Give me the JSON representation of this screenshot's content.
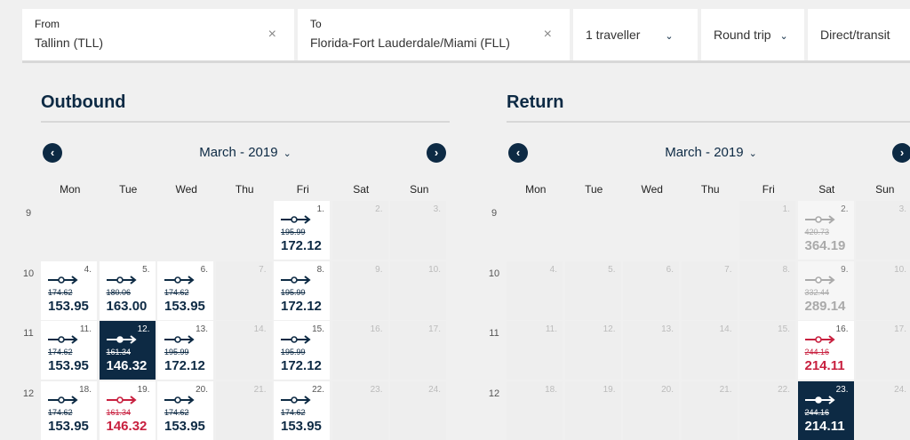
{
  "search": {
    "from_label": "From",
    "from_value": "Tallinn (TLL)",
    "to_label": "To",
    "to_value": "Florida-Fort Lauderdale/Miami (FLL)",
    "travellers": "1 traveller",
    "trip_type": "Round trip",
    "stops": "Direct/transit",
    "clear_icon": "×",
    "chevron": "⌄"
  },
  "colors": {
    "navy": "#0d2a44",
    "red": "#c8203f"
  },
  "dows": [
    "Mon",
    "Tue",
    "Wed",
    "Thu",
    "Fri",
    "Sat",
    "Sun"
  ],
  "outbound": {
    "title": "Outbound",
    "month": "March - 2019",
    "weeks": [
      {
        "num": "9",
        "cells": [
          null,
          null,
          null,
          null,
          {
            "day": "1.",
            "state": "avail",
            "old": "195.99",
            "price": "172.12"
          },
          {
            "day": "2.",
            "state": "na"
          },
          {
            "day": "3.",
            "state": "na"
          }
        ]
      },
      {
        "num": "10",
        "cells": [
          {
            "day": "4.",
            "state": "avail",
            "old": "174.62",
            "price": "153.95"
          },
          {
            "day": "5.",
            "state": "avail",
            "old": "180.06",
            "price": "163.00"
          },
          {
            "day": "6.",
            "state": "avail",
            "old": "174.62",
            "price": "153.95"
          },
          {
            "day": "7.",
            "state": "na"
          },
          {
            "day": "8.",
            "state": "avail",
            "old": "195.99",
            "price": "172.12"
          },
          {
            "day": "9.",
            "state": "na"
          },
          {
            "day": "10.",
            "state": "na"
          }
        ]
      },
      {
        "num": "11",
        "cells": [
          {
            "day": "11.",
            "state": "avail",
            "old": "174.62",
            "price": "153.95"
          },
          {
            "day": "12.",
            "state": "sel",
            "old": "161.34",
            "price": "146.32"
          },
          {
            "day": "13.",
            "state": "avail",
            "old": "195.99",
            "price": "172.12"
          },
          {
            "day": "14.",
            "state": "na"
          },
          {
            "day": "15.",
            "state": "avail",
            "old": "195.99",
            "price": "172.12"
          },
          {
            "day": "16.",
            "state": "na"
          },
          {
            "day": "17.",
            "state": "na"
          }
        ]
      },
      {
        "num": "12",
        "cells": [
          {
            "day": "18.",
            "state": "avail",
            "old": "174.62",
            "price": "153.95"
          },
          {
            "day": "19.",
            "state": "red",
            "old": "161.34",
            "price": "146.32"
          },
          {
            "day": "20.",
            "state": "avail",
            "old": "174.62",
            "price": "153.95"
          },
          {
            "day": "21.",
            "state": "na"
          },
          {
            "day": "22.",
            "state": "avail",
            "old": "174.62",
            "price": "153.95"
          },
          {
            "day": "23.",
            "state": "na"
          },
          {
            "day": "24.",
            "state": "na"
          }
        ]
      }
    ]
  },
  "return": {
    "title": "Return",
    "month": "March - 2019",
    "weeks": [
      {
        "num": "9",
        "cells": [
          null,
          null,
          null,
          null,
          {
            "day": "1.",
            "state": "na"
          },
          {
            "day": "2.",
            "state": "dim",
            "old": "420.73",
            "price": "364.19"
          },
          {
            "day": "3.",
            "state": "na"
          }
        ]
      },
      {
        "num": "10",
        "cells": [
          {
            "day": "4.",
            "state": "na"
          },
          {
            "day": "5.",
            "state": "na"
          },
          {
            "day": "6.",
            "state": "na"
          },
          {
            "day": "7.",
            "state": "na"
          },
          {
            "day": "8.",
            "state": "na"
          },
          {
            "day": "9.",
            "state": "dim",
            "old": "332.44",
            "price": "289.14"
          },
          {
            "day": "10.",
            "state": "na"
          }
        ]
      },
      {
        "num": "11",
        "cells": [
          {
            "day": "11.",
            "state": "na"
          },
          {
            "day": "12.",
            "state": "na"
          },
          {
            "day": "13.",
            "state": "na"
          },
          {
            "day": "14.",
            "state": "na"
          },
          {
            "day": "15.",
            "state": "na"
          },
          {
            "day": "16.",
            "state": "red",
            "old": "244.16",
            "price": "214.11"
          },
          {
            "day": "17.",
            "state": "na"
          }
        ]
      },
      {
        "num": "12",
        "cells": [
          {
            "day": "18.",
            "state": "na"
          },
          {
            "day": "19.",
            "state": "na"
          },
          {
            "day": "20.",
            "state": "na"
          },
          {
            "day": "21.",
            "state": "na"
          },
          {
            "day": "22.",
            "state": "na"
          },
          {
            "day": "23.",
            "state": "sel",
            "old": "244.16",
            "price": "214.11"
          },
          {
            "day": "24.",
            "state": "na"
          }
        ]
      }
    ]
  }
}
